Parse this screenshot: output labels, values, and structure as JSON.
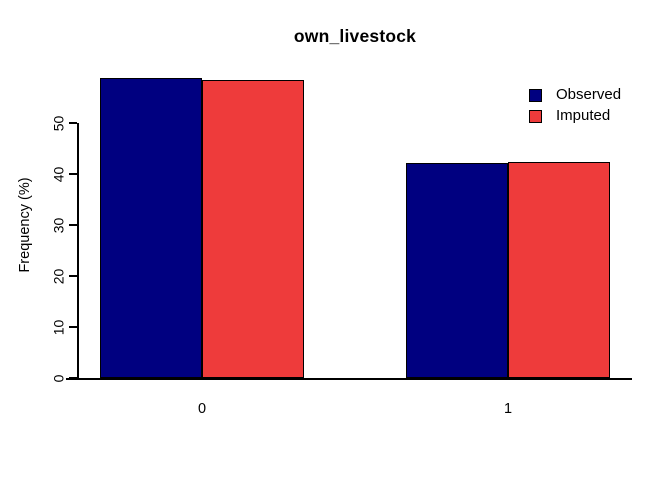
{
  "chart_data": {
    "type": "bar",
    "title": "own_livestock",
    "ylabel": "Frequency (%)",
    "xlabel": "",
    "categories": [
      "0",
      "1"
    ],
    "series": [
      {
        "name": "Observed",
        "color": "#000080",
        "values": [
          58.8,
          42.2
        ]
      },
      {
        "name": "Imputed",
        "color": "#EE3B3B",
        "values": [
          58.4,
          42.4
        ]
      }
    ],
    "ylim": [
      0,
      60
    ],
    "yticks": [
      0,
      10,
      20,
      30,
      40,
      50
    ],
    "legend_position": "top-right",
    "grid": false,
    "bar_border_color": "#000000",
    "axis_color": "#000000",
    "background": "#FFFFFF"
  }
}
